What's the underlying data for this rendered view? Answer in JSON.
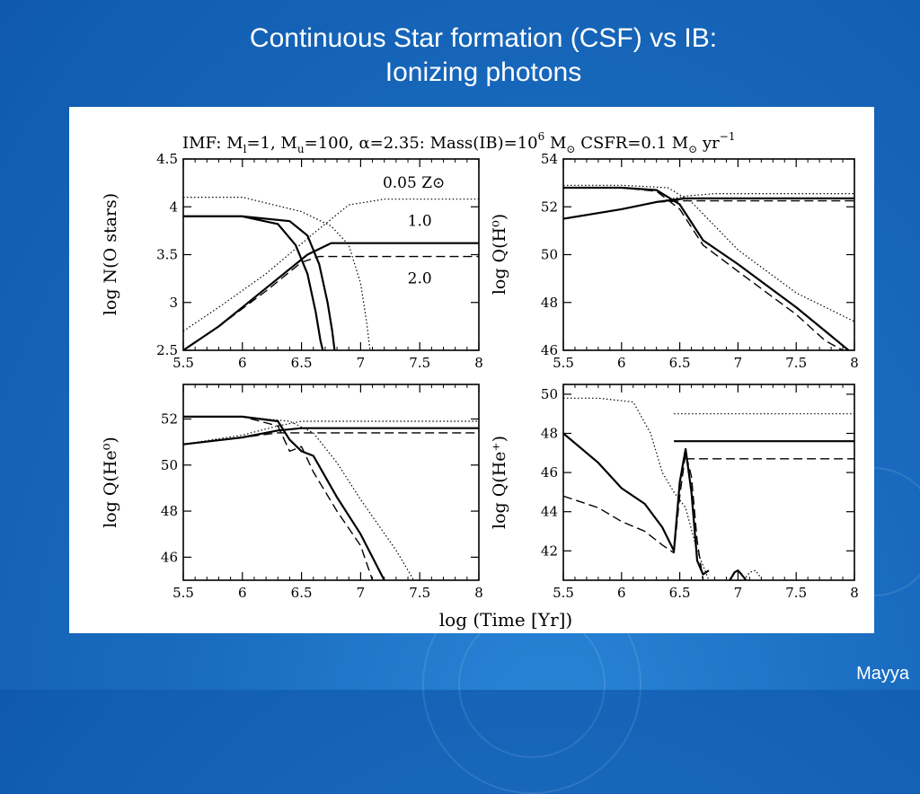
{
  "slide": {
    "title_line1": "Continuous Star formation (CSF) vs IB:",
    "title_line2": "Ionizing photons",
    "author": "Mayya"
  },
  "figure": {
    "header": "IMF: M_l=1, M_u=100, α=2.35: Mass(IB)=10^6 M_⊙   CSFR=0.1 M_⊙ yr^-1",
    "xlabel": "log (Time [Yr])"
  },
  "colors": {
    "background": "#1565b8",
    "line": "#000000",
    "text": "#ffffff"
  },
  "chart_data": [
    {
      "id": "nostars",
      "type": "line",
      "ylabel": "log N(O stars)",
      "xlim": [
        5.5,
        8
      ],
      "ylim": [
        2.5,
        4.5
      ],
      "xticks": [
        "5.5",
        "6",
        "6.5",
        "7",
        "7.5",
        "8"
      ],
      "yticks": [
        "2.5",
        "3",
        "3.5",
        "4",
        "4.5"
      ],
      "annotations": [
        "0.05 Z⊙",
        "1.0",
        "2.0"
      ],
      "series": [
        {
          "style": "solid",
          "x": [
            5.5,
            6.0,
            6.4,
            6.55,
            6.65,
            6.72,
            6.76,
            6.78
          ],
          "y": [
            3.9,
            3.9,
            3.85,
            3.7,
            3.4,
            3.0,
            2.7,
            2.5
          ]
        },
        {
          "style": "solid",
          "x": [
            5.5,
            6.0,
            6.3,
            6.45,
            6.55,
            6.62,
            6.66,
            6.68
          ],
          "y": [
            3.9,
            3.9,
            3.82,
            3.6,
            3.3,
            2.9,
            2.6,
            2.5
          ]
        },
        {
          "style": "dotted",
          "x": [
            5.5,
            6.0,
            6.5,
            6.75,
            6.9,
            7.0,
            7.05,
            7.08
          ],
          "y": [
            4.1,
            4.1,
            3.95,
            3.8,
            3.6,
            3.2,
            2.8,
            2.5
          ]
        },
        {
          "style": "dotted",
          "x": [
            5.5,
            5.8,
            6.2,
            6.6,
            6.9,
            7.2,
            7.6,
            8.0
          ],
          "y": [
            2.7,
            2.95,
            3.3,
            3.72,
            4.02,
            4.08,
            4.08,
            4.08
          ]
        },
        {
          "style": "solid",
          "x": [
            5.5,
            5.8,
            6.2,
            6.55,
            6.75,
            7.0,
            7.5,
            8.0
          ],
          "y": [
            2.5,
            2.75,
            3.15,
            3.5,
            3.62,
            3.62,
            3.62,
            3.62
          ]
        },
        {
          "style": "dashed",
          "x": [
            5.5,
            5.8,
            6.2,
            6.5,
            6.65,
            7.0,
            7.5,
            8.0
          ],
          "y": [
            2.5,
            2.75,
            3.12,
            3.42,
            3.48,
            3.48,
            3.48,
            3.48
          ]
        }
      ]
    },
    {
      "id": "qh",
      "type": "line",
      "ylabel": "log Q(H⁰)",
      "xlim": [
        5.5,
        8
      ],
      "ylim": [
        46,
        54
      ],
      "xticks": [
        "5.5",
        "6",
        "6.5",
        "7",
        "7.5",
        "8"
      ],
      "yticks": [
        "46",
        "48",
        "50",
        "52",
        "54"
      ],
      "series": [
        {
          "style": "dotted",
          "x": [
            5.5,
            6.0,
            6.4,
            6.6,
            6.8,
            7.0,
            7.5,
            8.0
          ],
          "y": [
            52.9,
            52.9,
            52.8,
            52.2,
            51.2,
            50.2,
            48.4,
            47.2
          ]
        },
        {
          "style": "solid",
          "x": [
            5.5,
            6.0,
            6.3,
            6.5,
            6.7,
            7.0,
            7.5,
            7.8,
            7.95
          ],
          "y": [
            52.8,
            52.8,
            52.7,
            52.1,
            50.6,
            49.6,
            47.8,
            46.6,
            46.0
          ]
        },
        {
          "style": "dashed",
          "x": [
            5.5,
            6.0,
            6.3,
            6.5,
            6.7,
            7.0,
            7.5,
            7.75,
            7.9
          ],
          "y": [
            52.8,
            52.8,
            52.65,
            51.9,
            50.4,
            49.3,
            47.5,
            46.4,
            46.0
          ]
        },
        {
          "style": "solid",
          "x": [
            5.5,
            6.0,
            6.3,
            6.55,
            6.8,
            8.0
          ],
          "y": [
            51.5,
            51.9,
            52.2,
            52.35,
            52.35,
            52.35
          ]
        },
        {
          "style": "dotted",
          "x": [
            5.5,
            6.0,
            6.3,
            6.55,
            6.8,
            8.0
          ],
          "y": [
            51.5,
            51.9,
            52.2,
            52.45,
            52.55,
            52.55
          ]
        },
        {
          "style": "dashed",
          "x": [
            5.5,
            6.0,
            6.3,
            6.55,
            6.8,
            8.0
          ],
          "y": [
            51.5,
            51.9,
            52.2,
            52.25,
            52.25,
            52.25
          ]
        }
      ]
    },
    {
      "id": "qhe0",
      "type": "line",
      "ylabel": "log Q(He⁰)",
      "xlim": [
        5.5,
        8
      ],
      "ylim": [
        45,
        53.5
      ],
      "xticks": [
        "5.5",
        "6",
        "6.5",
        "7",
        "7.5",
        "8"
      ],
      "yticks": [
        "46",
        "48",
        "50",
        "52"
      ],
      "series": [
        {
          "style": "dotted",
          "x": [
            5.5,
            6.0,
            6.4,
            6.6,
            6.8,
            7.0,
            7.3,
            7.45
          ],
          "y": [
            52.1,
            52.1,
            51.9,
            51.4,
            50.1,
            48.5,
            46.3,
            45.0
          ]
        },
        {
          "style": "solid",
          "x": [
            5.5,
            6.0,
            6.3,
            6.4,
            6.5,
            6.6,
            6.8,
            7.0,
            7.2
          ],
          "y": [
            52.1,
            52.1,
            51.9,
            51.1,
            50.6,
            50.4,
            48.6,
            47.0,
            45.0
          ]
        },
        {
          "style": "dashed",
          "x": [
            5.5,
            6.0,
            6.3,
            6.4,
            6.5,
            6.6,
            6.8,
            7.0,
            7.1
          ],
          "y": [
            52.1,
            52.1,
            51.7,
            50.6,
            50.8,
            49.7,
            48.0,
            46.5,
            45.0
          ]
        },
        {
          "style": "solid",
          "x": [
            5.5,
            6.0,
            6.3,
            6.5,
            8.0
          ],
          "y": [
            50.9,
            51.2,
            51.5,
            51.6,
            51.6
          ]
        },
        {
          "style": "dotted",
          "x": [
            5.5,
            6.0,
            6.3,
            6.5,
            8.0
          ],
          "y": [
            50.9,
            51.3,
            51.7,
            51.9,
            51.9
          ]
        },
        {
          "style": "dashed",
          "x": [
            5.5,
            6.0,
            6.3,
            6.5,
            8.0
          ],
          "y": [
            50.9,
            51.2,
            51.4,
            51.4,
            51.4
          ]
        }
      ]
    },
    {
      "id": "qheplus",
      "type": "line",
      "ylabel": "log Q(He⁺)",
      "xlim": [
        5.5,
        8
      ],
      "ylim": [
        40.5,
        50.5
      ],
      "xticks": [
        "5.5",
        "6",
        "6.5",
        "7",
        "7.5",
        "8"
      ],
      "yticks": [
        "42",
        "44",
        "46",
        "48",
        "50"
      ],
      "series": [
        {
          "style": "dotted",
          "x": [
            5.5,
            5.8,
            6.1,
            6.25,
            6.35,
            6.45,
            6.55,
            6.65,
            6.75
          ],
          "y": [
            49.8,
            49.8,
            49.6,
            48.0,
            46.0,
            45.0,
            44.2,
            42.0,
            40.5
          ]
        },
        {
          "style": "solid",
          "x": [
            5.5,
            5.8,
            6.0,
            6.2,
            6.35,
            6.45,
            6.5,
            6.55,
            6.6,
            6.65,
            6.7,
            6.75
          ],
          "y": [
            48.0,
            46.5,
            45.2,
            44.4,
            43.2,
            42.0,
            45.5,
            47.2,
            45.0,
            41.5,
            40.8,
            41.0
          ]
        },
        {
          "style": "dashed",
          "x": [
            5.5,
            5.8,
            6.0,
            6.2,
            6.35,
            6.45,
            6.5,
            6.55,
            6.6,
            6.65,
            6.7
          ],
          "y": [
            44.8,
            44.2,
            43.5,
            43.0,
            42.3,
            41.9,
            44.8,
            47.0,
            45.8,
            42.5,
            40.5
          ]
        },
        {
          "style": "solid",
          "x": [
            6.93,
            6.97,
            7.0,
            7.03,
            7.07
          ],
          "y": [
            40.5,
            40.9,
            41.0,
            40.8,
            40.5
          ]
        },
        {
          "style": "dotted",
          "x": [
            7.05,
            7.1,
            7.15,
            7.2
          ],
          "y": [
            40.5,
            40.9,
            41.0,
            40.6
          ]
        },
        {
          "style": "dotted",
          "x": [
            6.45,
            8.0
          ],
          "y": [
            49.0,
            49.0
          ]
        },
        {
          "style": "solid",
          "x": [
            6.45,
            8.0
          ],
          "y": [
            47.6,
            47.6
          ]
        },
        {
          "style": "dashed",
          "x": [
            6.55,
            8.0
          ],
          "y": [
            46.7,
            46.7
          ]
        }
      ]
    }
  ]
}
